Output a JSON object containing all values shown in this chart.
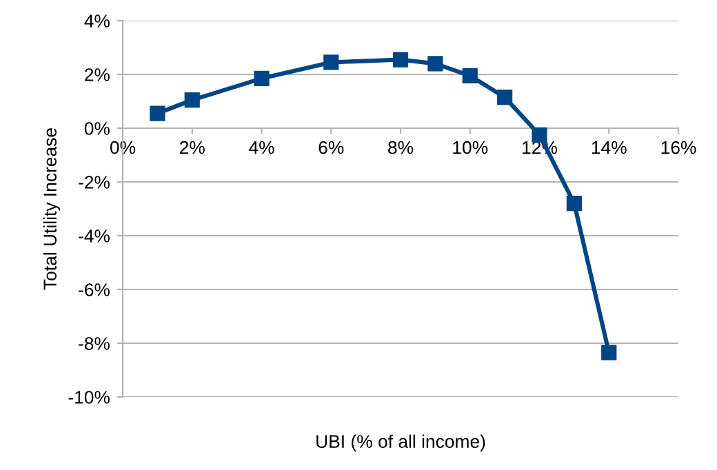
{
  "chart_data": {
    "type": "line",
    "xlabel": "UBI (% of all income)",
    "ylabel": "Total Utility Increase",
    "x": [
      1,
      2,
      4,
      6,
      8,
      9,
      10,
      11,
      12,
      13,
      14
    ],
    "series": [
      {
        "color": "#004586",
        "values": [
          0.55,
          1.05,
          1.85,
          2.45,
          2.55,
          2.4,
          1.95,
          1.15,
          -0.25,
          -2.8,
          -8.35
        ]
      }
    ],
    "xlim": [
      0,
      16
    ],
    "ylim": [
      -10,
      4
    ],
    "xticks": [
      {
        "value": 0,
        "label": "0%"
      },
      {
        "value": 2,
        "label": "2%"
      },
      {
        "value": 4,
        "label": "4%"
      },
      {
        "value": 6,
        "label": "6%"
      },
      {
        "value": 8,
        "label": "8%"
      },
      {
        "value": 10,
        "label": "10%"
      },
      {
        "value": 12,
        "label": "12%"
      },
      {
        "value": 14,
        "label": "14%"
      },
      {
        "value": 16,
        "label": "16%"
      }
    ],
    "yticks": [
      {
        "value": -10,
        "label": "-10%"
      },
      {
        "value": -8,
        "label": "-8%"
      },
      {
        "value": -6,
        "label": "-6%"
      },
      {
        "value": -4,
        "label": "-4%"
      },
      {
        "value": -2,
        "label": "-2%"
      },
      {
        "value": 0,
        "label": "0%"
      },
      {
        "value": 2,
        "label": "2%"
      },
      {
        "value": 4,
        "label": "4%"
      }
    ],
    "grid": "y",
    "marker": "square",
    "line_style": "solid",
    "legend": false
  }
}
